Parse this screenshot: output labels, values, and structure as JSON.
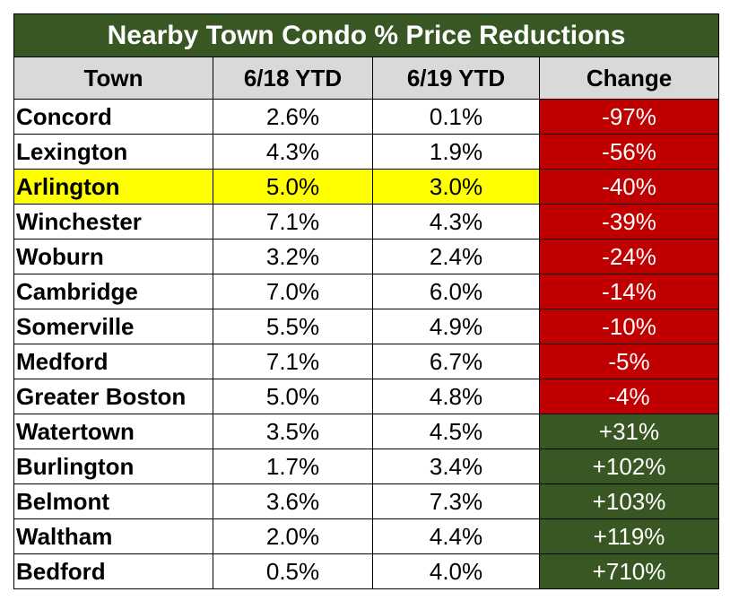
{
  "title": "Nearby Town Condo % Price Reductions",
  "columns": [
    "Town",
    "6/18 YTD",
    "6/19 YTD",
    "Change"
  ],
  "colors": {
    "title_bg": "#385723",
    "header_bg": "#d9d9d9",
    "negative_bg": "#c00000",
    "positive_bg": "#385723",
    "highlight_bg": "#ffff00"
  },
  "rows": [
    {
      "town": "Concord",
      "ytd18": "2.6%",
      "ytd19": "0.1%",
      "change": "-97%",
      "direction": "negative",
      "highlight": false
    },
    {
      "town": "Lexington",
      "ytd18": "4.3%",
      "ytd19": "1.9%",
      "change": "-56%",
      "direction": "negative",
      "highlight": false
    },
    {
      "town": "Arlington",
      "ytd18": "5.0%",
      "ytd19": "3.0%",
      "change": "-40%",
      "direction": "negative",
      "highlight": true
    },
    {
      "town": "Winchester",
      "ytd18": "7.1%",
      "ytd19": "4.3%",
      "change": "-39%",
      "direction": "negative",
      "highlight": false
    },
    {
      "town": "Woburn",
      "ytd18": "3.2%",
      "ytd19": "2.4%",
      "change": "-24%",
      "direction": "negative",
      "highlight": false
    },
    {
      "town": "Cambridge",
      "ytd18": "7.0%",
      "ytd19": "6.0%",
      "change": "-14%",
      "direction": "negative",
      "highlight": false
    },
    {
      "town": "Somerville",
      "ytd18": "5.5%",
      "ytd19": "4.9%",
      "change": "-10%",
      "direction": "negative",
      "highlight": false
    },
    {
      "town": "Medford",
      "ytd18": "7.1%",
      "ytd19": "6.7%",
      "change": "-5%",
      "direction": "negative",
      "highlight": false
    },
    {
      "town": "Greater Boston",
      "ytd18": "5.0%",
      "ytd19": "4.8%",
      "change": "-4%",
      "direction": "negative",
      "highlight": false
    },
    {
      "town": "Watertown",
      "ytd18": "3.5%",
      "ytd19": "4.5%",
      "change": "+31%",
      "direction": "positive",
      "highlight": false
    },
    {
      "town": "Burlington",
      "ytd18": "1.7%",
      "ytd19": "3.4%",
      "change": "+102%",
      "direction": "positive",
      "highlight": false
    },
    {
      "town": "Belmont",
      "ytd18": "3.6%",
      "ytd19": "7.3%",
      "change": "+103%",
      "direction": "positive",
      "highlight": false
    },
    {
      "town": "Waltham",
      "ytd18": "2.0%",
      "ytd19": "4.4%",
      "change": "+119%",
      "direction": "positive",
      "highlight": false
    },
    {
      "town": "Bedford",
      "ytd18": "0.5%",
      "ytd19": "4.0%",
      "change": "+710%",
      "direction": "positive",
      "highlight": false
    }
  ]
}
